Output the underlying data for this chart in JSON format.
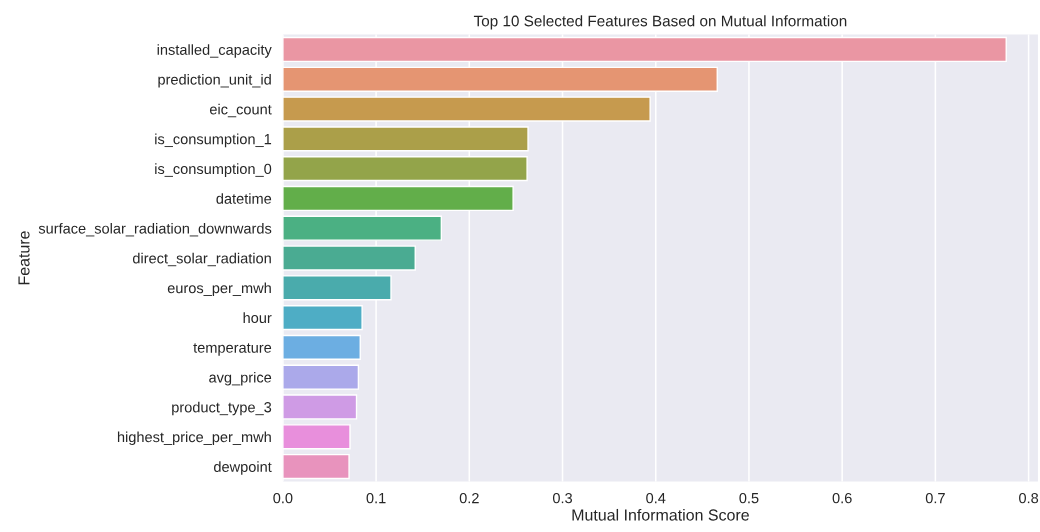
{
  "chart_data": {
    "type": "bar",
    "orientation": "horizontal",
    "title": "Top 10 Selected Features Based on Mutual Information",
    "xlabel": "Mutual Information Score",
    "ylabel": "Feature",
    "categories": [
      "installed_capacity",
      "prediction_unit_id",
      "eic_count",
      "is_consumption_1",
      "is_consumption_0",
      "datetime",
      "surface_solar_radiation_downwards",
      "direct_solar_radiation",
      "euros_per_mwh",
      "hour",
      "temperature",
      "avg_price",
      "product_type_3",
      "highest_price_per_mwh",
      "dewpoint"
    ],
    "values": [
      0.776,
      0.466,
      0.394,
      0.263,
      0.262,
      0.247,
      0.17,
      0.142,
      0.116,
      0.085,
      0.083,
      0.081,
      0.079,
      0.072,
      0.071
    ],
    "colors": [
      "#ea96a3",
      "#e59572",
      "#c69a4e",
      "#ab9f49",
      "#93a44a",
      "#62ae4a",
      "#4bb083",
      "#4aab92",
      "#4aabac",
      "#4eadc5",
      "#6caee2",
      "#aba9ea",
      "#cf9be5",
      "#e88fdc",
      "#e893bd"
    ],
    "xlim": [
      0,
      0.81
    ],
    "xticks": [
      {
        "value": 0,
        "label": "0.0"
      },
      0.1,
      0.2,
      0.3,
      0.4,
      0.5,
      0.6,
      0.7,
      0.8
    ],
    "grid": "x"
  }
}
